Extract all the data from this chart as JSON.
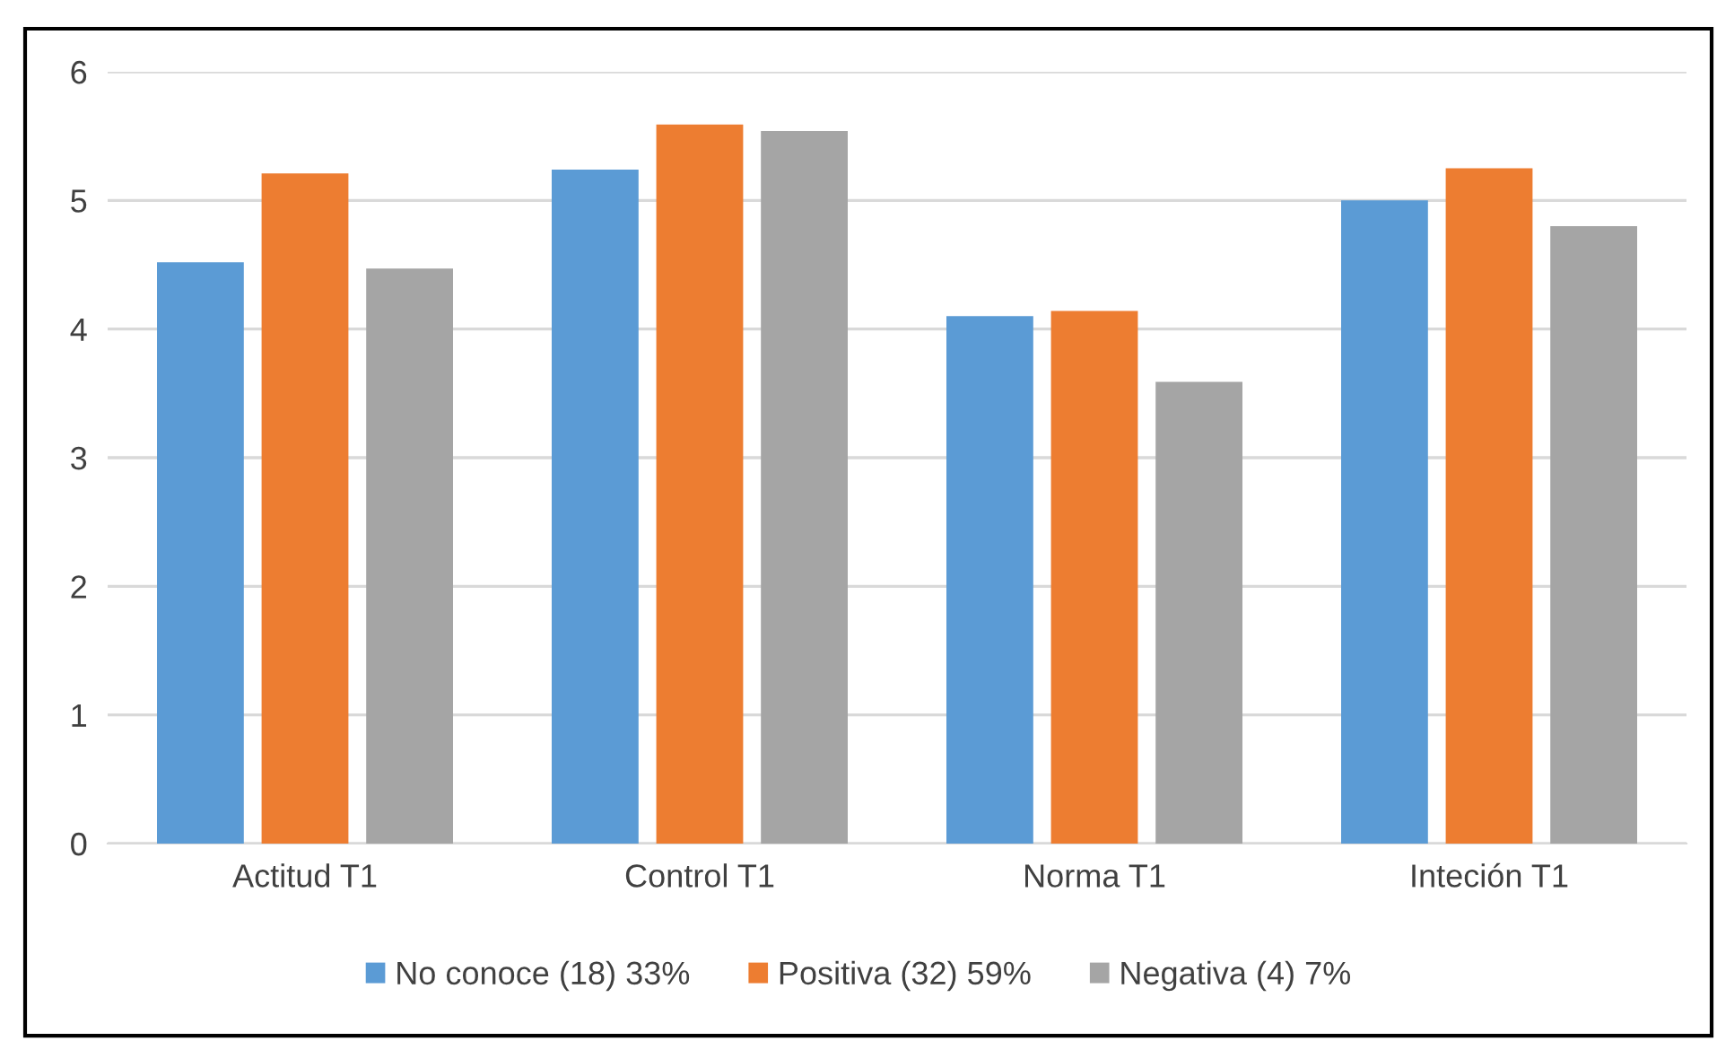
{
  "chart_data": {
    "type": "bar",
    "categories": [
      "Actitud T1",
      "Control T1",
      "Norma T1",
      "Inteción T1"
    ],
    "series": [
      {
        "name": "No conoce (18) 33%",
        "color": "#5b9bd5",
        "values": [
          4.52,
          5.24,
          4.1,
          5.0
        ]
      },
      {
        "name": "Positiva (32) 59%",
        "color": "#ed7d31",
        "values": [
          5.21,
          5.59,
          4.14,
          5.25
        ]
      },
      {
        "name": "Negativa (4) 7%",
        "color": "#a5a5a5",
        "values": [
          4.47,
          5.54,
          3.59,
          4.8
        ]
      }
    ],
    "ylim": [
      0,
      6
    ],
    "yticks": [
      0,
      1,
      2,
      3,
      4,
      5,
      6
    ],
    "grid": "y",
    "legend": "bottom"
  }
}
